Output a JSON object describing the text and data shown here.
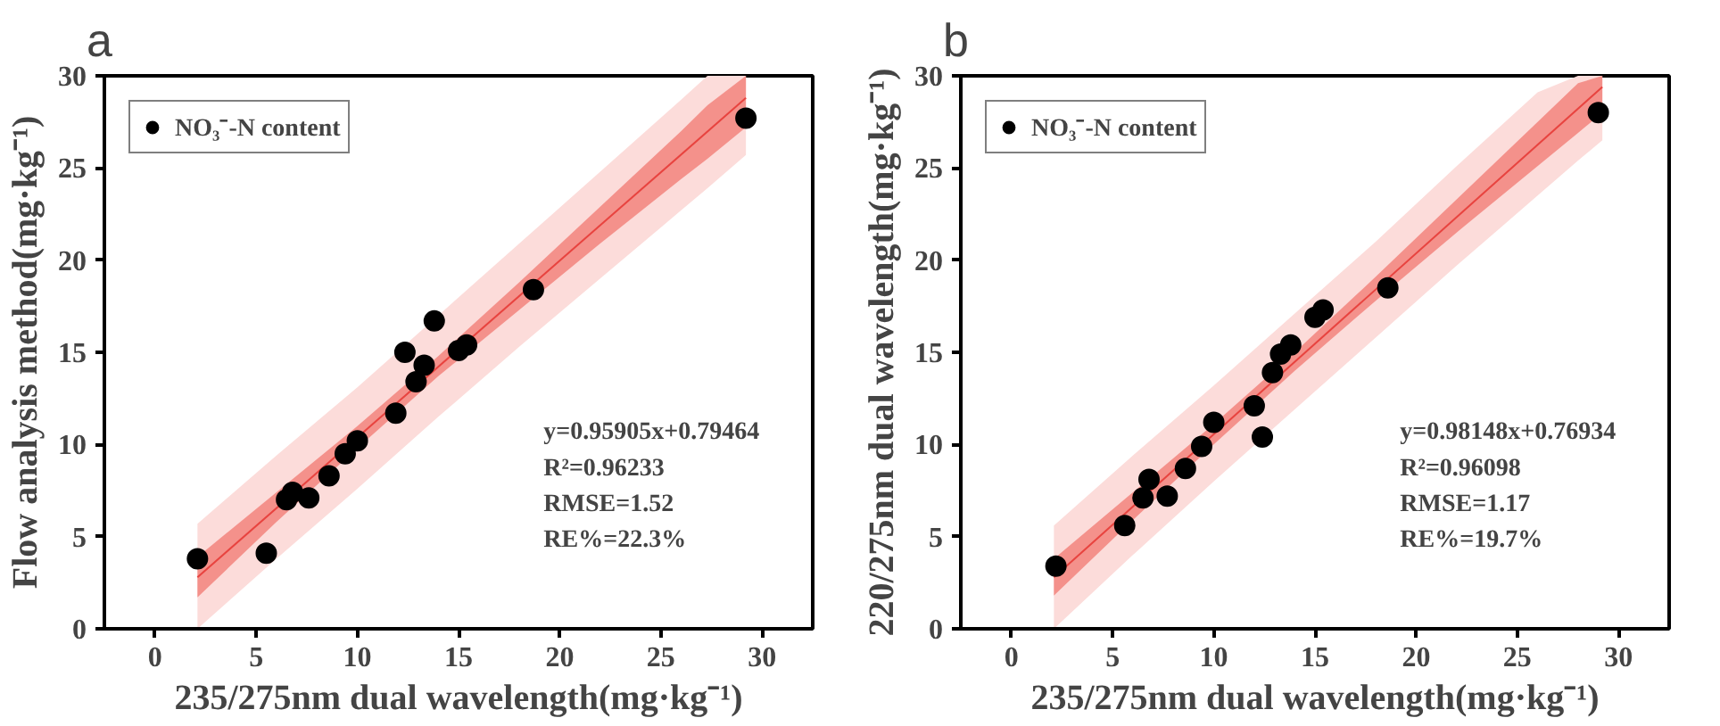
{
  "chart_data": [
    {
      "type": "scatter",
      "title": "a",
      "xlabel": "235/275nm dual wavelength(mg·kg⁻¹)",
      "ylabel": "Flow analysis method(mg·kg⁻¹)",
      "xlim": [
        -2.5,
        32.5
      ],
      "ylim": [
        0,
        30
      ],
      "xticks": [
        0,
        5,
        10,
        15,
        20,
        25,
        30
      ],
      "yticks": [
        0,
        5,
        10,
        15,
        20,
        25,
        30
      ],
      "grid": false,
      "legend": "top left",
      "annotations": [
        "y=0.95905x+0.79464",
        "R²=0.96233",
        "RMSE=1.52",
        "RE%=22.3%"
      ],
      "series": [
        {
          "type": "line",
          "color": "#fcdcda",
          "x": [
            2.1,
            6,
            10,
            14,
            18,
            22,
            26,
            27.3,
            29.2
          ],
          "values": [
            null,
            null,
            null,
            null,
            null,
            null,
            null,
            null,
            null
          ],
          "lower": [
            0,
            3.8,
            7.6,
            11.5,
            15.3,
            19.0,
            22.7,
            23.9,
            25.7
          ],
          "upper": [
            5.7,
            9.4,
            13.1,
            17.0,
            20.9,
            24.8,
            28.7,
            30,
            30
          ]
        },
        {
          "type": "line",
          "color": "#f4918b",
          "x": [
            2.1,
            6,
            10,
            14,
            18,
            22,
            26,
            27.3,
            29.2
          ],
          "values": [
            null,
            null,
            null,
            null,
            null,
            null,
            null,
            null,
            null
          ],
          "lower": [
            1.7,
            5.8,
            9.8,
            13.7,
            17.3,
            20.9,
            24.4,
            25.5,
            27.2
          ],
          "upper": [
            3.9,
            7.4,
            11.0,
            14.8,
            18.8,
            22.9,
            27.0,
            28.4,
            30
          ]
        },
        {
          "type": "line",
          "color": "#e8433f",
          "x": [
            2.1,
            29.2
          ],
          "values": [
            2.8,
            28.8
          ]
        },
        {
          "type": "scatter",
          "name": "NO₃⁻-N content",
          "marker": "circle",
          "color": "#000000",
          "x": [
            2.1,
            5.5,
            6.5,
            6.8,
            7.6,
            8.6,
            9.4,
            10.0,
            11.9,
            12.35,
            12.9,
            13.3,
            13.8,
            15.0,
            15.4,
            18.7,
            29.2
          ],
          "values": [
            3.8,
            4.1,
            7.0,
            7.4,
            7.1,
            8.3,
            9.5,
            10.2,
            11.7,
            15.0,
            13.4,
            14.3,
            16.7,
            15.1,
            15.4,
            18.4,
            27.7
          ]
        }
      ]
    },
    {
      "type": "scatter",
      "title": "b",
      "xlabel": "235/275nm dual wavelength(mg·kg⁻¹)",
      "ylabel": "220/275nm dual wavelength(mg·kg⁻¹)",
      "xlim": [
        -2.5,
        32.5
      ],
      "ylim": [
        0,
        30
      ],
      "xticks": [
        0,
        5,
        10,
        15,
        20,
        25,
        30
      ],
      "yticks": [
        0,
        5,
        10,
        15,
        20,
        25,
        30
      ],
      "grid": false,
      "legend": "top left",
      "annotations": [
        "y=0.98148x+0.76934",
        "R²=0.96098",
        "RMSE=1.17",
        "RE%=19.7%"
      ],
      "series": [
        {
          "type": "line",
          "color": "#fcdcda",
          "x": [
            2.1,
            6,
            10,
            14,
            18,
            22,
            26,
            28,
            29.2
          ],
          "values": [
            null,
            null,
            null,
            null,
            null,
            null,
            null,
            null,
            null
          ],
          "lower": [
            0,
            4.0,
            8.0,
            11.9,
            15.8,
            19.7,
            23.5,
            25.4,
            26.5
          ],
          "upper": [
            5.6,
            9.4,
            13.2,
            17.1,
            21.0,
            25.1,
            29.1,
            30,
            30
          ]
        },
        {
          "type": "line",
          "color": "#f4918b",
          "x": [
            2.1,
            6,
            10,
            14,
            18,
            22,
            26,
            28,
            29.2
          ],
          "values": [
            null,
            null,
            null,
            null,
            null,
            null,
            null,
            null,
            null
          ],
          "lower": [
            1.8,
            5.9,
            10.0,
            14.0,
            17.8,
            21.5,
            25.1,
            26.9,
            28.0
          ],
          "upper": [
            3.8,
            7.4,
            11.1,
            15.0,
            19.1,
            23.3,
            27.5,
            29.6,
            30
          ]
        },
        {
          "type": "line",
          "color": "#e8433f",
          "x": [
            2.1,
            29.2
          ],
          "values": [
            2.8,
            29.4
          ]
        },
        {
          "type": "scatter",
          "name": "NO₃⁻-N content",
          "marker": "circle",
          "color": "#000000",
          "x": [
            2.2,
            5.6,
            6.5,
            6.8,
            7.7,
            8.6,
            9.4,
            10.0,
            12.0,
            12.4,
            12.9,
            13.3,
            13.8,
            15.0,
            15.4,
            18.6,
            29.0
          ],
          "values": [
            3.4,
            5.6,
            7.1,
            8.1,
            7.2,
            8.7,
            9.9,
            11.2,
            12.1,
            10.4,
            13.9,
            14.9,
            15.4,
            16.9,
            17.3,
            18.5,
            28.0
          ]
        }
      ]
    }
  ]
}
